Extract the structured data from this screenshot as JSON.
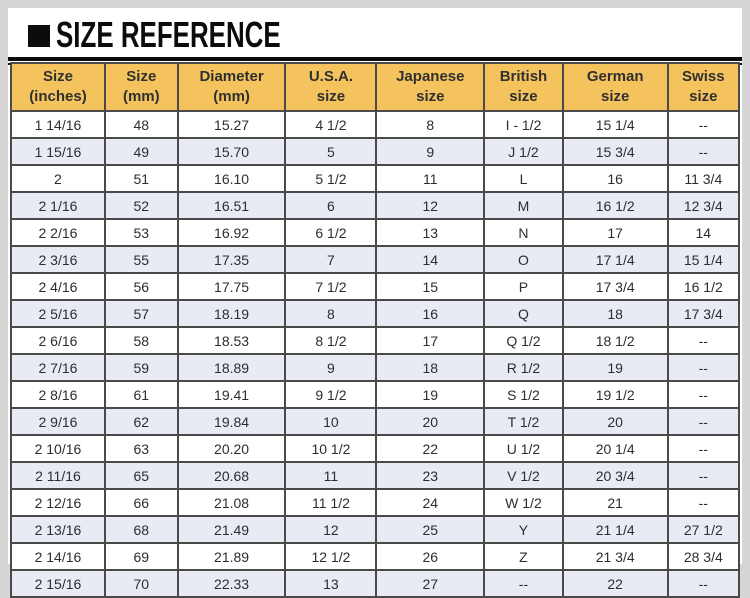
{
  "title": "SIZE REFERENCE",
  "colors": {
    "header_bg": "#f5c35e",
    "row_alt_bg": "#e9ebf4",
    "table_border": "#4a4a4a",
    "frame_bg": "#d6d6d6",
    "title_color": "#0c0c0c"
  },
  "table": {
    "columns": [
      {
        "line1": "Size",
        "line2": "(inches)"
      },
      {
        "line1": "Size",
        "line2": "(mm)"
      },
      {
        "line1": "Diameter",
        "line2": "(mm)"
      },
      {
        "line1": "U.S.A.",
        "line2": "size"
      },
      {
        "line1": "Japanese",
        "line2": "size"
      },
      {
        "line1": "British",
        "line2": "size"
      },
      {
        "line1": "German",
        "line2": "size"
      },
      {
        "line1": "Swiss",
        "line2": "size"
      }
    ],
    "rows": [
      [
        "1 14/16",
        "48",
        "15.27",
        "4 1/2",
        "8",
        "I - 1/2",
        "15 1/4",
        "--"
      ],
      [
        "1 15/16",
        "49",
        "15.70",
        "5",
        "9",
        "J 1/2",
        "15 3/4",
        "--"
      ],
      [
        "2",
        "51",
        "16.10",
        "5 1/2",
        "11",
        "L",
        "16",
        "11 3/4"
      ],
      [
        "2 1/16",
        "52",
        "16.51",
        "6",
        "12",
        "M",
        "16 1/2",
        "12 3/4"
      ],
      [
        "2 2/16",
        "53",
        "16.92",
        "6 1/2",
        "13",
        "N",
        "17",
        "14"
      ],
      [
        "2 3/16",
        "55",
        "17.35",
        "7",
        "14",
        "O",
        "17 1/4",
        "15 1/4"
      ],
      [
        "2 4/16",
        "56",
        "17.75",
        "7 1/2",
        "15",
        "P",
        "17 3/4",
        "16 1/2"
      ],
      [
        "2 5/16",
        "57",
        "18.19",
        "8",
        "16",
        "Q",
        "18",
        "17 3/4"
      ],
      [
        "2 6/16",
        "58",
        "18.53",
        "8 1/2",
        "17",
        "Q 1/2",
        "18 1/2",
        "--"
      ],
      [
        "2 7/16",
        "59",
        "18.89",
        "9",
        "18",
        "R 1/2",
        "19",
        "--"
      ],
      [
        "2 8/16",
        "61",
        "19.41",
        "9 1/2",
        "19",
        "S 1/2",
        "19 1/2",
        "--"
      ],
      [
        "2 9/16",
        "62",
        "19.84",
        "10",
        "20",
        "T 1/2",
        "20",
        "--"
      ],
      [
        "2 10/16",
        "63",
        "20.20",
        "10 1/2",
        "22",
        "U 1/2",
        "20 1/4",
        "--"
      ],
      [
        "2 11/16",
        "65",
        "20.68",
        "11",
        "23",
        "V 1/2",
        "20 3/4",
        "--"
      ],
      [
        "2 12/16",
        "66",
        "21.08",
        "11 1/2",
        "24",
        "W 1/2",
        "21",
        "--"
      ],
      [
        "2 13/16",
        "68",
        "21.49",
        "12",
        "25",
        "Y",
        "21 1/4",
        "27 1/2"
      ],
      [
        "2 14/16",
        "69",
        "21.89",
        "12 1/2",
        "26",
        "Z",
        "21 3/4",
        "28 3/4"
      ],
      [
        "2 15/16",
        "70",
        "22.33",
        "13",
        "27",
        "--",
        "22",
        "--"
      ]
    ]
  }
}
